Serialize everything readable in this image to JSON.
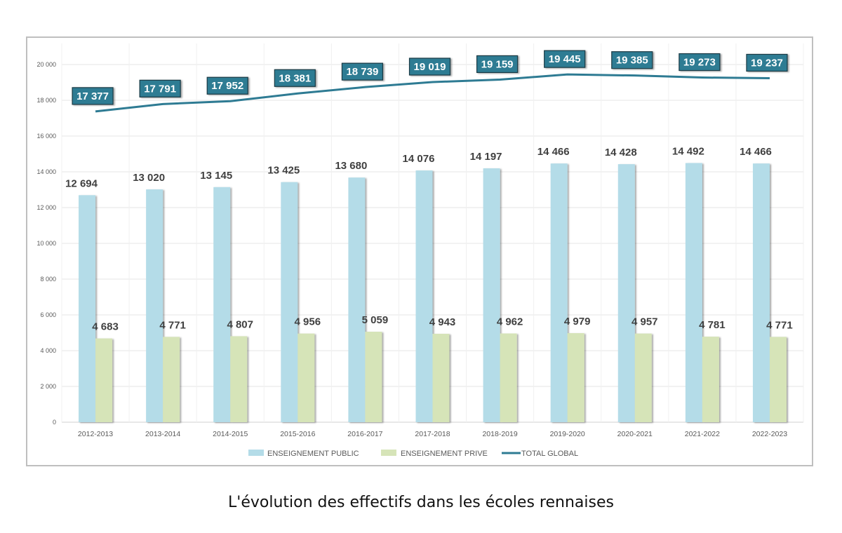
{
  "chart_data": {
    "type": "bar",
    "title": "",
    "xlabel": "",
    "ylabel": "",
    "ylim": [
      0,
      20000
    ],
    "y_ticks": [
      0,
      2000,
      4000,
      6000,
      8000,
      10000,
      12000,
      14000,
      16000,
      18000,
      20000
    ],
    "y_tick_labels": [
      "0",
      "2 000",
      "4 000",
      "6 000",
      "8 000",
      "10 000",
      "12 000",
      "14 000",
      "16 000",
      "18 000",
      "20 000"
    ],
    "grid": true,
    "legend_position": "bottom",
    "categories": [
      "2012-2013",
      "2013-2014",
      "2014-2015",
      "2015-2016",
      "2016-2017",
      "2017-2018",
      "2018-2019",
      "2019-2020",
      "2020-2021",
      "2021-2022",
      "2022-2023"
    ],
    "series": [
      {
        "name": "ENSEIGNEMENT PUBLIC",
        "type": "bar",
        "color": "#b4dce8",
        "values": [
          12694,
          13020,
          13145,
          13425,
          13680,
          14076,
          14197,
          14466,
          14428,
          14492,
          14466
        ],
        "labels": [
          "12 694",
          "13 020",
          "13 145",
          "13 425",
          "13 680",
          "14 076",
          "14 197",
          "14 466",
          "14 428",
          "14 492",
          "14 466"
        ]
      },
      {
        "name": "ENSEIGNEMENT PRIVE",
        "type": "bar",
        "color": "#d6e4b8",
        "values": [
          4683,
          4771,
          4807,
          4956,
          5059,
          4943,
          4962,
          4979,
          4957,
          4781,
          4771
        ],
        "labels": [
          "4 683",
          "4 771",
          "4 807",
          "4 956",
          "5 059",
          "4 943",
          "4 962",
          "4 979",
          "4 957",
          "4 781",
          "4 771"
        ]
      },
      {
        "name": "TOTAL GLOBAL",
        "type": "line",
        "color": "#2e7b93",
        "values": [
          17377,
          17791,
          17952,
          18381,
          18739,
          19019,
          19159,
          19445,
          19385,
          19273,
          19237
        ],
        "labels": [
          "17 377",
          "17 791",
          "17 952",
          "18 381",
          "18 739",
          "19 019",
          "19 159",
          "19 445",
          "19 385",
          "19 273",
          "19 237"
        ]
      }
    ]
  },
  "caption": "L'évolution des effectifs dans les écoles rennaises"
}
